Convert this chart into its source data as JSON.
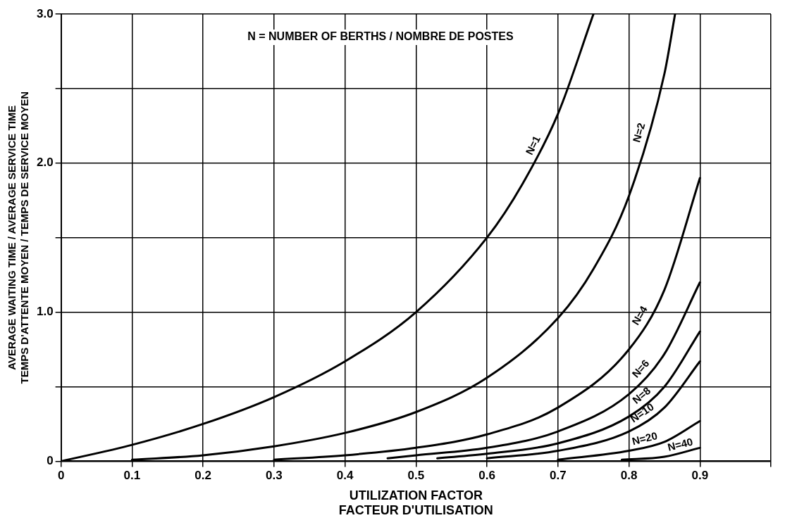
{
  "chart_data": {
    "type": "line",
    "xlabel": "UTILIZATION FACTOR\nFACTEUR D'UTILISATION",
    "ylabel": "AVERAGE WAITING TIME / AVERAGE SERVICE TIME\nTEMPS D'ATTENTE MOYEN / TEMPS DE SERVICE MOYEN",
    "annotations": [
      "N = NUMBER OF BERTHS / NOMBRE DE POSTES"
    ],
    "xlim": [
      0,
      1.0
    ],
    "xticks": [
      0,
      0.1,
      0.2,
      0.3,
      0.4,
      0.5,
      0.6,
      0.7,
      0.8,
      0.9,
      {
        "value": 1.0,
        "label": null
      }
    ],
    "ylim": [
      0,
      3.0
    ],
    "yticks": [
      0,
      {
        "value": 0.5,
        "label": null
      },
      {
        "value": 1.0,
        "label": "1.0"
      },
      {
        "value": 1.5,
        "label": null
      },
      {
        "value": 2.0,
        "label": "2.0"
      },
      {
        "value": 2.5,
        "label": null
      },
      {
        "value": 3.0,
        "label": "3.0"
      }
    ],
    "grid": true,
    "legend": false,
    "marker": "none",
    "line_style": "solid",
    "series": [
      {
        "name": "N=1",
        "color": "#000000",
        "x": [
          0,
          0.1,
          0.2,
          0.3,
          0.4,
          0.5,
          0.6,
          0.65,
          0.7,
          0.75
        ],
        "values": [
          0,
          0.11,
          0.25,
          0.43,
          0.67,
          1.0,
          1.5,
          1.86,
          2.33,
          3.0
        ]
      },
      {
        "name": "N=2",
        "color": "#000000",
        "x": [
          0.1,
          0.2,
          0.3,
          0.4,
          0.5,
          0.6,
          0.7,
          0.75,
          0.8,
          0.85,
          0.865
        ],
        "values": [
          0.01,
          0.04,
          0.1,
          0.19,
          0.33,
          0.56,
          0.96,
          1.29,
          1.78,
          2.6,
          3.0
        ]
      },
      {
        "name": "N=4",
        "color": "#000000",
        "x": [
          0.3,
          0.4,
          0.5,
          0.6,
          0.7,
          0.8,
          0.85,
          0.9
        ],
        "values": [
          0.01,
          0.04,
          0.09,
          0.18,
          0.36,
          0.75,
          1.15,
          1.9
        ]
      },
      {
        "name": "N=6",
        "color": "#000000",
        "x": [
          0.46,
          0.5,
          0.6,
          0.7,
          0.8,
          0.85,
          0.9
        ],
        "values": [
          0.02,
          0.04,
          0.09,
          0.2,
          0.45,
          0.72,
          1.2
        ]
      },
      {
        "name": "N=8",
        "color": "#000000",
        "x": [
          0.53,
          0.6,
          0.7,
          0.8,
          0.85,
          0.9
        ],
        "values": [
          0.02,
          0.05,
          0.12,
          0.3,
          0.5,
          0.87
        ]
      },
      {
        "name": "N=10",
        "color": "#000000",
        "x": [
          0.6,
          0.7,
          0.8,
          0.85,
          0.9
        ],
        "values": [
          0.02,
          0.07,
          0.2,
          0.36,
          0.67
        ]
      },
      {
        "name": "N=20",
        "color": "#000000",
        "x": [
          0.7,
          0.8,
          0.85,
          0.9
        ],
        "values": [
          0.01,
          0.07,
          0.13,
          0.27
        ]
      },
      {
        "name": "N=40",
        "color": "#000000",
        "x": [
          0.79,
          0.85,
          0.9
        ],
        "values": [
          0.01,
          0.03,
          0.09
        ]
      }
    ]
  }
}
